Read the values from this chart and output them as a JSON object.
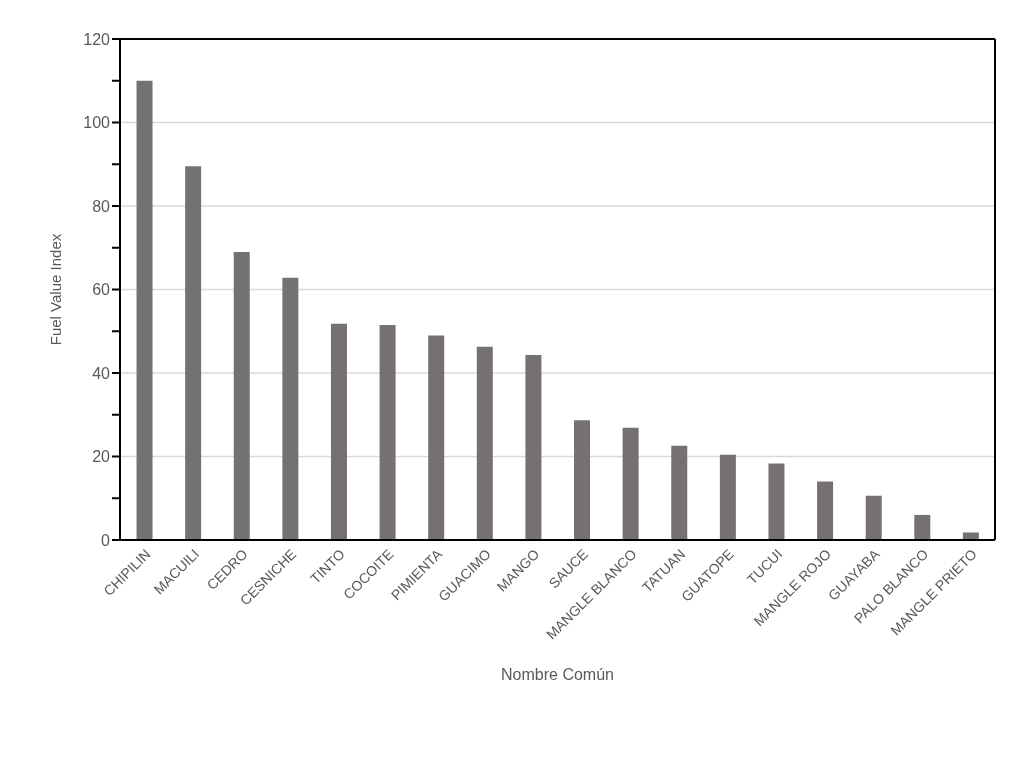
{
  "chart_data": {
    "type": "bar",
    "xlabel": "Nombre Común",
    "ylabel": "Fuel Value Index",
    "categories": [
      "CHIPILIN",
      "MACUILI",
      "CEDRO",
      "CESNICHE",
      "TINTO",
      "COCOITE",
      "PIMIENTA",
      "GUACIMO",
      "MANGO",
      "SAUCE",
      "MANGLE BLANCO",
      "TATUAN",
      "GUATOPE",
      "TUCUI",
      "MANGLE ROJO",
      "GUAYABA",
      "PALO BLANCO",
      "MANGLE PRIETO"
    ],
    "values": [
      110,
      89.5,
      69,
      62.8,
      51.8,
      51.5,
      49,
      46.3,
      44.3,
      28.7,
      26.9,
      22.6,
      20.4,
      18.3,
      14,
      10.6,
      6,
      1.8
    ],
    "color": "#757171",
    "ylim": [
      0,
      120
    ],
    "yticks": [
      0,
      {
        "value": 10,
        "label": null
      },
      20,
      {
        "value": 30,
        "label": null
      },
      40,
      {
        "value": 50,
        "label": null
      },
      60,
      {
        "value": 70,
        "label": null
      },
      80,
      {
        "value": 90,
        "label": null
      },
      100,
      {
        "value": 110,
        "label": null
      },
      120
    ],
    "grid": "y"
  }
}
